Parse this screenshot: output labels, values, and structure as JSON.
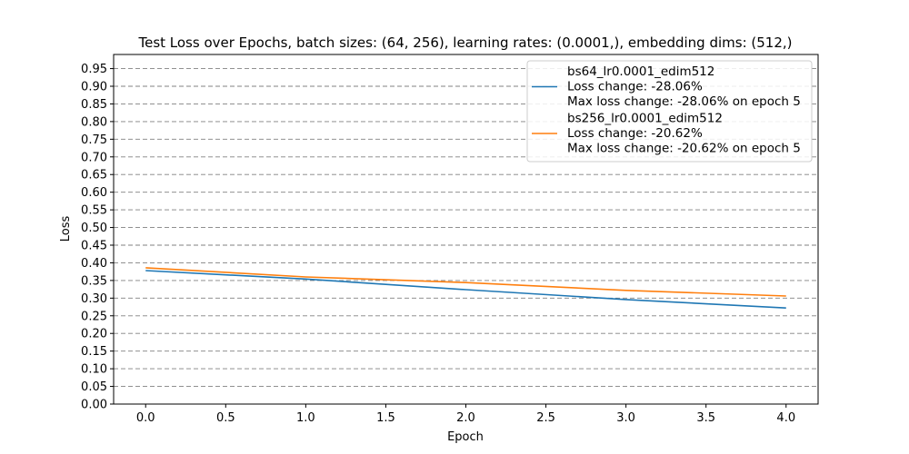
{
  "chart_data": {
    "type": "line",
    "title": "Test Loss over Epochs, batch sizes: (64, 256), learning rates: (0.0001,), embedding dims: (512,)",
    "xlabel": "Epoch",
    "ylabel": "Loss",
    "xlim": [
      -0.2,
      4.2
    ],
    "ylim": [
      0.0,
      0.99
    ],
    "xticks": [
      0.0,
      0.5,
      1.0,
      1.5,
      2.0,
      2.5,
      3.0,
      3.5,
      4.0
    ],
    "xtick_labels": [
      "0.0",
      "0.5",
      "1.0",
      "1.5",
      "2.0",
      "2.5",
      "3.0",
      "3.5",
      "4.0"
    ],
    "yticks": [
      0.0,
      0.05,
      0.1,
      0.15,
      0.2,
      0.25,
      0.3,
      0.35,
      0.4,
      0.45,
      0.5,
      0.55,
      0.6,
      0.65,
      0.7,
      0.75,
      0.8,
      0.85,
      0.9,
      0.95
    ],
    "ytick_labels": [
      "0.00",
      "0.05",
      "0.10",
      "0.15",
      "0.20",
      "0.25",
      "0.30",
      "0.35",
      "0.40",
      "0.45",
      "0.50",
      "0.55",
      "0.60",
      "0.65",
      "0.70",
      "0.75",
      "0.80",
      "0.85",
      "0.90",
      "0.95"
    ],
    "grid": "y-dashed",
    "legend_position": "top-right",
    "series": [
      {
        "name": "bs64_lr0.0001_edim512",
        "legend_lines": [
          "bs64_lr0.0001_edim512",
          "Loss change: -28.06%",
          "Max loss change: -28.06% on epoch 5"
        ],
        "color": "#1f77b4",
        "x": [
          0,
          1,
          2,
          3,
          4
        ],
        "y": [
          0.378,
          0.354,
          0.324,
          0.296,
          0.272
        ]
      },
      {
        "name": "bs256_lr0.0001_edim512",
        "legend_lines": [
          "bs256_lr0.0001_edim512",
          "Loss change: -20.62%",
          "Max loss change: -20.62% on epoch 5"
        ],
        "color": "#ff7f0e",
        "x": [
          0,
          1,
          2,
          3,
          4
        ],
        "y": [
          0.386,
          0.36,
          0.344,
          0.322,
          0.306
        ]
      }
    ]
  }
}
